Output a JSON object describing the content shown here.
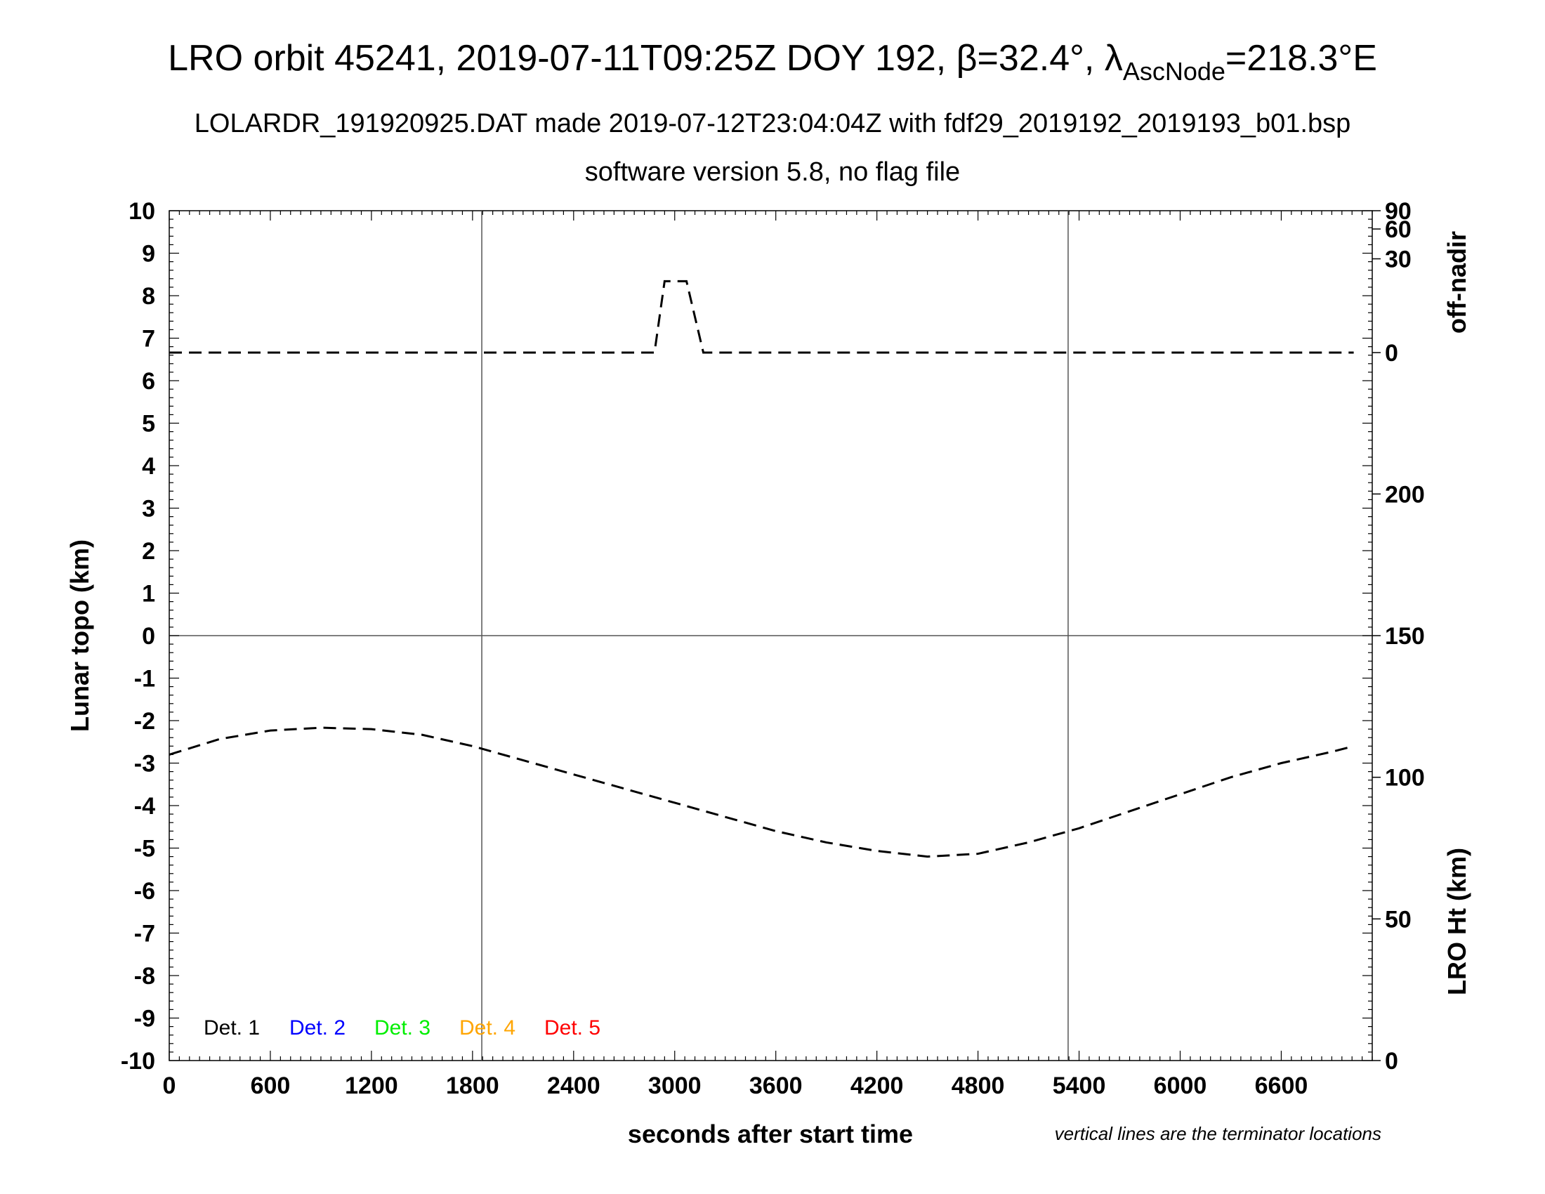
{
  "chart_data": {
    "type": "line",
    "title_prefix": "LRO orbit 45241, 2019-07-11T09:25Z DOY 192, ",
    "title_beta": "β=32.4°, ",
    "title_lambda": "λ",
    "title_lambda_sub": "AscNode",
    "title_suffix": "=218.3°E",
    "subtitle1": "LOLARDR_191920925.DAT made 2019-07-12T23:04:04Z with fdf29_2019192_2019193_b01.bsp",
    "subtitle2": "software version 5.8, no flag file",
    "xlabel": "seconds after start time",
    "ylabel_left": "Lunar topo (km)",
    "ylabel_right_top": "off-nadir",
    "ylabel_right_bottom": "LRO Ht (km)",
    "note": "vertical lines are the terminator locations",
    "xlim": [
      0,
      7140
    ],
    "ylim": [
      -10,
      10
    ],
    "x_ticks": [
      "0",
      "600",
      "1200",
      "1800",
      "2400",
      "3000",
      "3600",
      "4200",
      "4800",
      "5400",
      "6000",
      "6600"
    ],
    "y_ticks": [
      "10",
      "9",
      "8",
      "7",
      "6",
      "5",
      "4",
      "3",
      "2",
      "1",
      "0",
      "-1",
      "-2",
      "-3",
      "-4",
      "-5",
      "-6",
      "-7",
      "-8",
      "-9",
      "-10"
    ],
    "offnadir_ticks": [
      "90",
      "60",
      "30",
      "0"
    ],
    "ht_ticks": [
      "200",
      "150",
      "100",
      "50",
      "0"
    ],
    "ht_range": [
      0,
      300
    ],
    "terminator_x": [
      1855,
      5335
    ],
    "legend": [
      {
        "label": "Det. 1",
        "color": "#000000"
      },
      {
        "label": "Det. 2",
        "color": "#0000ff"
      },
      {
        "label": "Det. 3",
        "color": "#00ee00"
      },
      {
        "label": "Det. 4",
        "color": "#ffa500"
      },
      {
        "label": "Det. 5",
        "color": "#ff0000"
      }
    ],
    "series": [
      {
        "kind": "off-nadir",
        "x": [
          0,
          2880,
          2940,
          3070,
          3170,
          7030
        ],
        "deg": [
          0,
          0,
          17,
          17,
          0,
          0
        ]
      },
      {
        "kind": "lro-height",
        "x": [
          0,
          300,
          600,
          900,
          1200,
          1500,
          1800,
          2100,
          2400,
          2700,
          3000,
          3300,
          3600,
          3900,
          4200,
          4500,
          4800,
          5100,
          5400,
          5700,
          6000,
          6300,
          6600,
          6900,
          7030
        ],
        "ht_km": [
          108,
          113.5,
          116.5,
          117.5,
          117,
          115,
          111,
          106,
          101,
          96,
          91,
          86,
          81,
          77,
          74,
          72,
          73,
          77,
          82,
          88,
          94,
          100,
          105,
          109,
          111
        ]
      }
    ]
  }
}
